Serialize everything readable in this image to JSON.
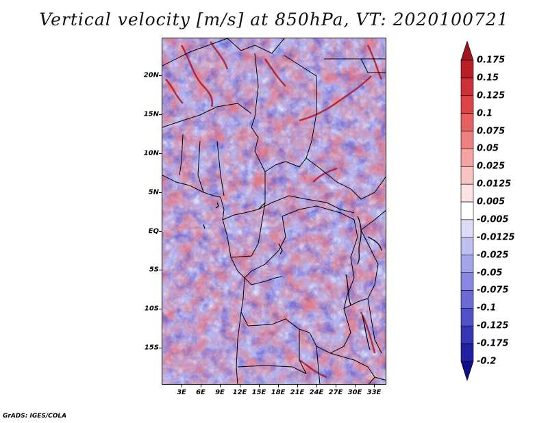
{
  "title": "Vertical velocity [m/s] at 850hPa, VT: 2020100721",
  "credit": "GrADS: IGES/COLA",
  "map": {
    "lat_labels": [
      "20N",
      "15N",
      "10N",
      "5N",
      "EQ",
      "5S",
      "10S",
      "15S"
    ],
    "lon_labels": [
      "3E",
      "6E",
      "9E",
      "12E",
      "15E",
      "18E",
      "21E",
      "24E",
      "27E",
      "30E",
      "33E"
    ]
  },
  "colorbar": {
    "levels": [
      "0.175",
      "0.15",
      "0.125",
      "0.1",
      "0.075",
      "0.05",
      "0.025",
      "0.0125",
      "0.005",
      "-0.005",
      "-0.0125",
      "-0.025",
      "-0.05",
      "-0.075",
      "-0.1",
      "-0.125",
      "-0.175",
      "-0.2"
    ],
    "colors": [
      "#a0141e",
      "#b82028",
      "#cc3038",
      "#dc4448",
      "#e66060",
      "#ee8080",
      "#f4a2a2",
      "#f8c4c4",
      "#fce2e2",
      "#ffffff",
      "#dcdcf6",
      "#c0c0f0",
      "#a4a4ea",
      "#8888e2",
      "#6c6cd6",
      "#5050c8",
      "#3636b4",
      "#2020a0",
      "#120c88"
    ]
  }
}
